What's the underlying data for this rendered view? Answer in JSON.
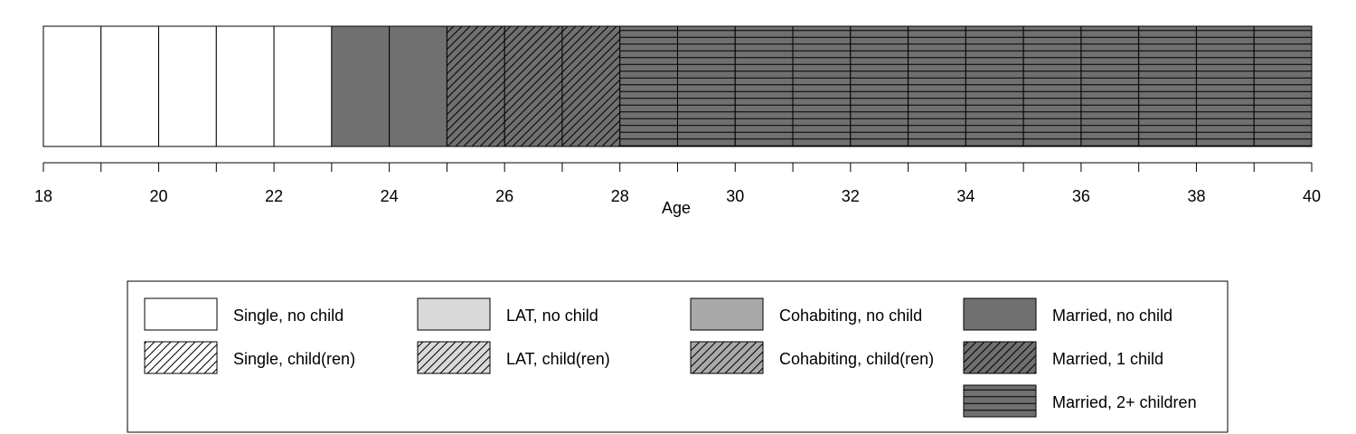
{
  "chart_data": {
    "type": "sequence_index",
    "xlabel": "Age",
    "xlim": [
      18,
      40
    ],
    "x_ticks": [
      18,
      20,
      22,
      24,
      26,
      28,
      30,
      32,
      34,
      36,
      38,
      40
    ],
    "states": [
      {
        "key": "single_nochild",
        "label": "Single, no child",
        "color": "#ffffff",
        "pattern": "none"
      },
      {
        "key": "lat_nochild",
        "label": "LAT, no child",
        "color": "#d9d9d9",
        "pattern": "none"
      },
      {
        "key": "cohab_nochild",
        "label": "Cohabiting, no child",
        "color": "#a9a9a9",
        "pattern": "none"
      },
      {
        "key": "married_nochild",
        "label": "Married, no child",
        "color": "#707070",
        "pattern": "none"
      },
      {
        "key": "single_children",
        "label": "Single, child(ren)",
        "color": "#ffffff",
        "pattern": "diagonal"
      },
      {
        "key": "lat_children",
        "label": "LAT, child(ren)",
        "color": "#d9d9d9",
        "pattern": "diagonal"
      },
      {
        "key": "cohab_children",
        "label": "Cohabiting, child(ren)",
        "color": "#a9a9a9",
        "pattern": "diagonal"
      },
      {
        "key": "married_1child",
        "label": "Married, 1 child",
        "color": "#707070",
        "pattern": "diagonal"
      },
      {
        "key": "married_2plus",
        "label": "Married, 2+ children",
        "color": "#707070",
        "pattern": "horizontal"
      }
    ],
    "sequence": [
      "single_nochild",
      "single_nochild",
      "single_nochild",
      "single_nochild",
      "single_nochild",
      "married_nochild",
      "married_nochild",
      "married_1child",
      "married_1child",
      "married_1child",
      "married_2plus",
      "married_2plus",
      "married_2plus",
      "married_2plus",
      "married_2plus",
      "married_2plus",
      "married_2plus",
      "married_2plus",
      "married_2plus",
      "married_2plus",
      "married_2plus",
      "married_2plus"
    ],
    "sequence_start_age": 18,
    "legend_position": "bottom",
    "legend_columns": 4
  }
}
